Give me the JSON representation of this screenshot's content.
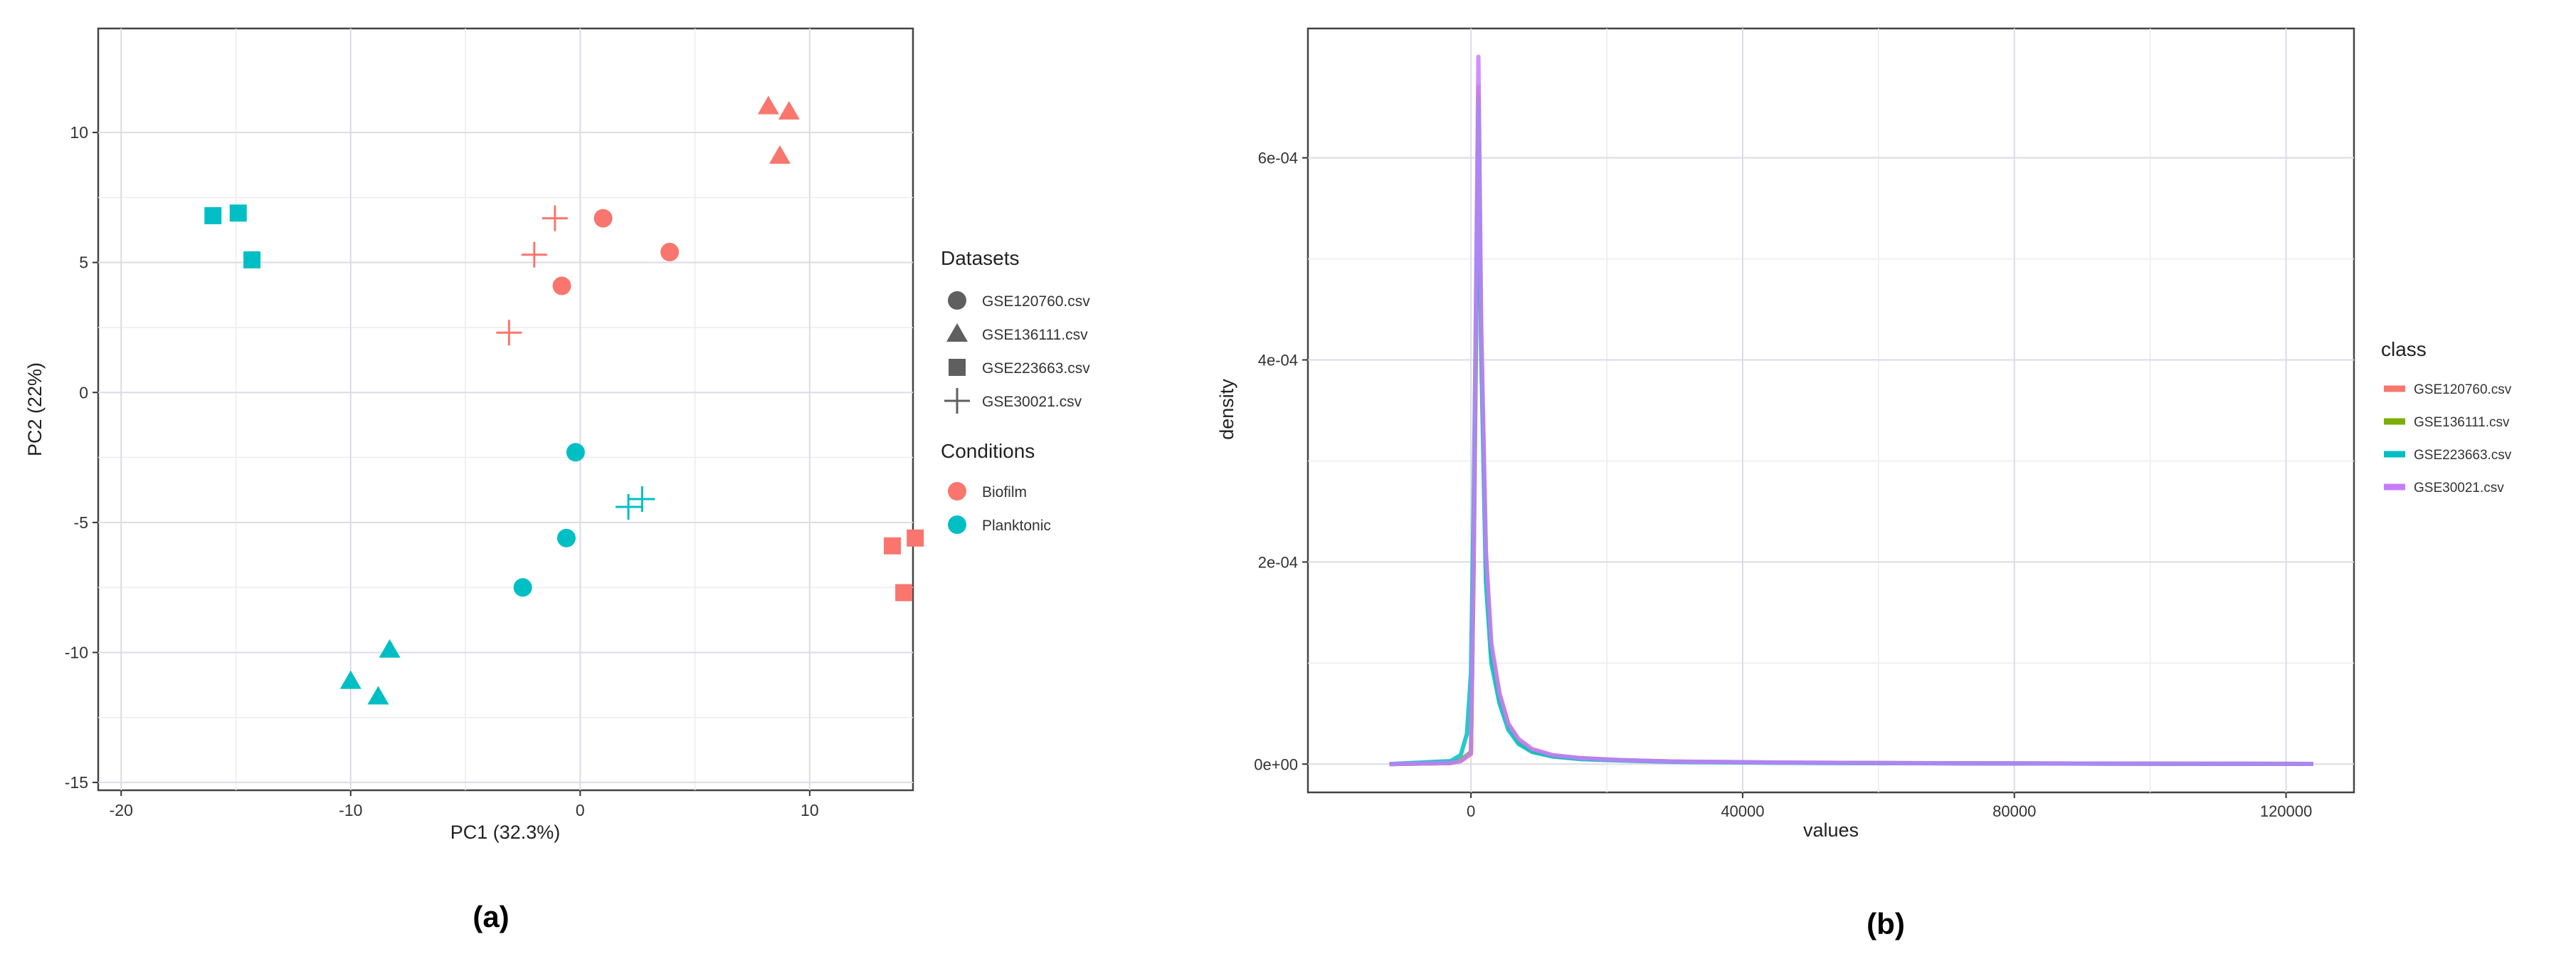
{
  "chart_data": [
    {
      "panel_label": "(a)",
      "type": "scatter",
      "xlabel": "PC1 (32.3%)",
      "ylabel": "PC2 (22%)",
      "xlim": [
        -21,
        14.5
      ],
      "ylim": [
        -15.3,
        14
      ],
      "xticks": [
        -20,
        -10,
        0,
        10
      ],
      "yticks": [
        -15,
        -10,
        -5,
        0,
        5,
        10
      ],
      "grid": true,
      "legend_placement": "right",
      "legends": [
        {
          "title": "Datasets",
          "items": [
            {
              "label": "GSE120760.csv",
              "shape": "circle"
            },
            {
              "label": "GSE136111.csv",
              "shape": "triangle"
            },
            {
              "label": "GSE223663.csv",
              "shape": "square"
            },
            {
              "label": "GSE30021.csv",
              "shape": "plus"
            }
          ]
        },
        {
          "title": "Conditions",
          "items": [
            {
              "label": "Biofilm",
              "color": "#F8766D"
            },
            {
              "label": "Planktonic",
              "color": "#00BFC4"
            }
          ]
        }
      ],
      "points": [
        {
          "x": 1.0,
          "y": 6.7,
          "dataset": "GSE120760.csv",
          "condition": "Biofilm"
        },
        {
          "x": 3.9,
          "y": 5.4,
          "dataset": "GSE120760.csv",
          "condition": "Biofilm"
        },
        {
          "x": -0.8,
          "y": 4.1,
          "dataset": "GSE120760.csv",
          "condition": "Biofilm"
        },
        {
          "x": 8.2,
          "y": 11.0,
          "dataset": "GSE136111.csv",
          "condition": "Biofilm"
        },
        {
          "x": 9.1,
          "y": 10.8,
          "dataset": "GSE136111.csv",
          "condition": "Biofilm"
        },
        {
          "x": 8.7,
          "y": 9.1,
          "dataset": "GSE136111.csv",
          "condition": "Biofilm"
        },
        {
          "x": 13.6,
          "y": -5.9,
          "dataset": "GSE223663.csv",
          "condition": "Biofilm"
        },
        {
          "x": 14.6,
          "y": -5.6,
          "dataset": "GSE223663.csv",
          "condition": "Biofilm"
        },
        {
          "x": 14.1,
          "y": -7.7,
          "dataset": "GSE223663.csv",
          "condition": "Biofilm"
        },
        {
          "x": -1.1,
          "y": 6.7,
          "dataset": "GSE30021.csv",
          "condition": "Biofilm"
        },
        {
          "x": -2.0,
          "y": 5.3,
          "dataset": "GSE30021.csv",
          "condition": "Biofilm"
        },
        {
          "x": -3.1,
          "y": 2.3,
          "dataset": "GSE30021.csv",
          "condition": "Biofilm"
        },
        {
          "x": -0.2,
          "y": -2.3,
          "dataset": "GSE120760.csv",
          "condition": "Planktonic"
        },
        {
          "x": -0.6,
          "y": -5.6,
          "dataset": "GSE120760.csv",
          "condition": "Planktonic"
        },
        {
          "x": -2.5,
          "y": -7.5,
          "dataset": "GSE120760.csv",
          "condition": "Planktonic"
        },
        {
          "x": -8.3,
          "y": -9.9,
          "dataset": "GSE136111.csv",
          "condition": "Planktonic"
        },
        {
          "x": -10.0,
          "y": -11.1,
          "dataset": "GSE136111.csv",
          "condition": "Planktonic"
        },
        {
          "x": -8.8,
          "y": -11.7,
          "dataset": "GSE136111.csv",
          "condition": "Planktonic"
        },
        {
          "x": -16.0,
          "y": 6.8,
          "dataset": "GSE223663.csv",
          "condition": "Planktonic"
        },
        {
          "x": -14.9,
          "y": 6.9,
          "dataset": "GSE223663.csv",
          "condition": "Planktonic"
        },
        {
          "x": -14.3,
          "y": 5.1,
          "dataset": "GSE223663.csv",
          "condition": "Planktonic"
        },
        {
          "x": 2.7,
          "y": -4.1,
          "dataset": "GSE30021.csv",
          "condition": "Planktonic"
        },
        {
          "x": 2.1,
          "y": -4.4,
          "dataset": "GSE30021.csv",
          "condition": "Planktonic"
        }
      ]
    },
    {
      "panel_label": "(b)",
      "type": "line",
      "xlabel": "values",
      "ylabel": "density",
      "xlim": [
        -24000,
        130000
      ],
      "ylim": [
        -2.8e-05,
        0.000728
      ],
      "xticks": [
        0,
        40000,
        80000,
        120000
      ],
      "xtick_labels": [
        "0",
        "40000",
        "80000",
        "120000"
      ],
      "yticks": [
        0,
        0.0002,
        0.0004,
        0.0006
      ],
      "ytick_labels": [
        "0e+00",
        "2e-04",
        "4e-04",
        "6e-04"
      ],
      "grid": true,
      "legend_placement": "right",
      "legend_title": "class",
      "series": [
        {
          "name": "GSE120760.csv",
          "color": "#F8766D",
          "x": [
            -12000,
            -3000,
            -1500,
            0,
            400,
            800,
            1100,
            1500,
            2200,
            3000,
            4200,
            5500,
            7000,
            9000,
            12000,
            16000,
            22000,
            30000,
            45000,
            60000,
            80000,
            100000,
            124000
          ],
          "y": [
            0,
            1e-06,
            3e-06,
            1e-05,
            0.00019,
            0.00045,
            0.00067,
            0.00043,
            0.00021,
            0.000115,
            7e-05,
            4e-05,
            2.4e-05,
            1.4e-05,
            8.5e-06,
            6e-06,
            4e-06,
            2.5e-06,
            1.5e-06,
            1e-06,
            7e-07,
            4e-07,
            2e-07
          ]
        },
        {
          "name": "GSE136111.csv",
          "color": "#7CAE00",
          "x": [
            -12000,
            -3000,
            -1500,
            0,
            400,
            800,
            1100,
            1500,
            2200,
            3000,
            4200,
            5500,
            7000,
            9000,
            12000,
            16000,
            22000,
            30000,
            45000,
            60000,
            80000,
            100000,
            124000
          ],
          "y": [
            0,
            1e-06,
            4e-06,
            1.2e-05,
            0.0002,
            0.00046,
            0.00066,
            0.00042,
            0.0002,
            0.00011,
            6.5e-05,
            3.8e-05,
            2.2e-05,
            1.3e-05,
            8e-06,
            5.5e-06,
            3.8e-06,
            2.4e-06,
            1.4e-06,
            1e-06,
            6e-07,
            4e-07,
            2e-07
          ]
        },
        {
          "name": "GSE223663.csv",
          "color": "#00BFC4",
          "x": [
            -12000,
            -3000,
            -1500,
            -600,
            0,
            400,
            800,
            1100,
            1500,
            2200,
            3000,
            4200,
            5500,
            7000,
            9000,
            12000,
            16000,
            22000,
            30000,
            45000,
            60000,
            80000,
            100000,
            124000
          ],
          "y": [
            0,
            3e-06,
            9e-06,
            3e-05,
            9e-05,
            0.00026,
            0.00048,
            0.00065,
            0.00041,
            0.00018,
            0.0001,
            6e-05,
            3.4e-05,
            2e-05,
            1.2e-05,
            7.5e-06,
            5e-06,
            3.5e-06,
            2.2e-06,
            1.3e-06,
            9e-07,
            6e-07,
            3e-07,
            2e-07
          ]
        },
        {
          "name": "GSE30021.csv",
          "color": "#C77CFF",
          "x": [
            -12000,
            -3000,
            -1500,
            0,
            400,
            800,
            1100,
            1500,
            2200,
            3000,
            4200,
            5500,
            7000,
            9000,
            12000,
            16000,
            22000,
            30000,
            45000,
            60000,
            80000,
            100000,
            124000
          ],
          "y": [
            0,
            1e-06,
            3e-06,
            1.1e-05,
            0.00021,
            0.0005,
            0.0007,
            0.00044,
            0.00021,
            0.00012,
            7e-05,
            4e-05,
            2.5e-05,
            1.5e-05,
            9e-06,
            6e-06,
            4e-06,
            2.6e-06,
            1.6e-06,
            1e-06,
            7e-07,
            4e-07,
            2e-07
          ]
        }
      ]
    }
  ]
}
